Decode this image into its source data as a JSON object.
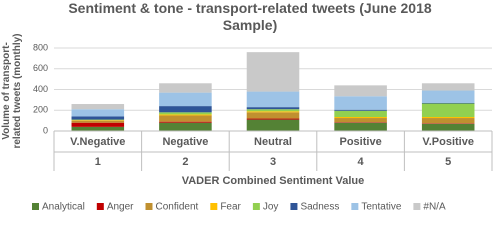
{
  "chart_data": {
    "type": "stacked_bar",
    "title": "Sentiment & tone - transport-related tweets (June 2018 Sample)",
    "x_label": "VADER Combined Sentiment Value",
    "y_label": "Volume of transport-related tweets (monthly)",
    "categories": [
      "V.Negative",
      "Negative",
      "Neutral",
      "Positive",
      "V.Positive"
    ],
    "category_codes": [
      "1",
      "2",
      "3",
      "4",
      "5"
    ],
    "ylim": [
      0,
      800
    ],
    "yticks": [
      0,
      200,
      400,
      600,
      800
    ],
    "grid": true,
    "legend": "bottom",
    "series": [
      {
        "name": "Analytical",
        "color": "#548235",
        "values": [
          40,
          80,
          110,
          80,
          70
        ]
      },
      {
        "name": "Anger",
        "color": "#c00000",
        "values": [
          40,
          10,
          10,
          5,
          5
        ]
      },
      {
        "name": "Confident",
        "color": "#c09030",
        "values": [
          20,
          60,
          60,
          40,
          50
        ]
      },
      {
        "name": "Fear",
        "color": "#ffc000",
        "values": [
          5,
          10,
          10,
          10,
          10
        ]
      },
      {
        "name": "Joy",
        "color": "#92d050",
        "values": [
          5,
          20,
          20,
          60,
          130
        ]
      },
      {
        "name": "Sadness",
        "color": "#2f5597",
        "values": [
          30,
          60,
          20,
          10,
          5
        ]
      },
      {
        "name": "Tentative",
        "color": "#9dc3e6",
        "values": [
          70,
          130,
          150,
          130,
          120
        ]
      },
      {
        "name": "#N/A",
        "color": "#c9c9c9",
        "values": [
          50,
          90,
          380,
          105,
          70
        ]
      }
    ]
  }
}
